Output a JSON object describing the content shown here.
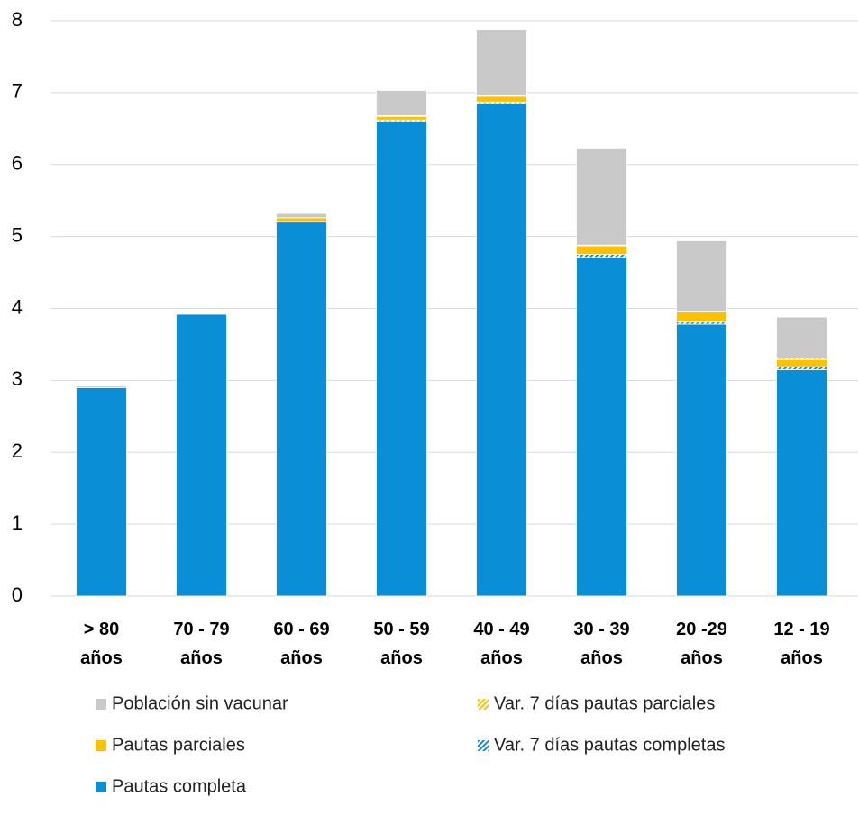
{
  "chart_data": {
    "type": "stacked_bar",
    "categories": [
      "> 80 años",
      "70 - 79 años",
      "60 - 69 años",
      "50 - 59 años",
      "40 - 49 años",
      "30 - 39 años",
      "20 -29 años",
      "12 - 19 años"
    ],
    "series": [
      {
        "name": "Pautas completa",
        "color": "#0a8ed6",
        "hatch": false,
        "values": [
          2.9,
          3.92,
          5.2,
          6.6,
          6.85,
          4.71,
          3.78,
          3.15
        ]
      },
      {
        "name": "Var. 7 días pautas completas",
        "color": "#0a8ed6",
        "hatch": true,
        "values": [
          0,
          0,
          0.01,
          0.02,
          0.02,
          0.04,
          0.03,
          0.04
        ]
      },
      {
        "name": "Pautas parciales",
        "color": "#ffc000",
        "hatch": false,
        "values": [
          0.02,
          0.01,
          0.05,
          0.05,
          0.08,
          0.12,
          0.14,
          0.1
        ]
      },
      {
        "name": "Var. 7 días pautas parciales",
        "color": "#ffc000",
        "hatch": true,
        "values": [
          0,
          0,
          0,
          0.01,
          0.01,
          0.01,
          0.01,
          0.02
        ]
      },
      {
        "name": "Población sin vacunar",
        "color": "#c9c9c9",
        "hatch": false,
        "values": [
          0.01,
          0,
          0.06,
          0.35,
          0.92,
          1.35,
          0.98,
          0.57
        ]
      }
    ],
    "ylim": [
      0,
      8
    ],
    "yticks": [
      0,
      1,
      2,
      3,
      4,
      5,
      6,
      7,
      8
    ],
    "grid": true,
    "legend": "bottom"
  }
}
